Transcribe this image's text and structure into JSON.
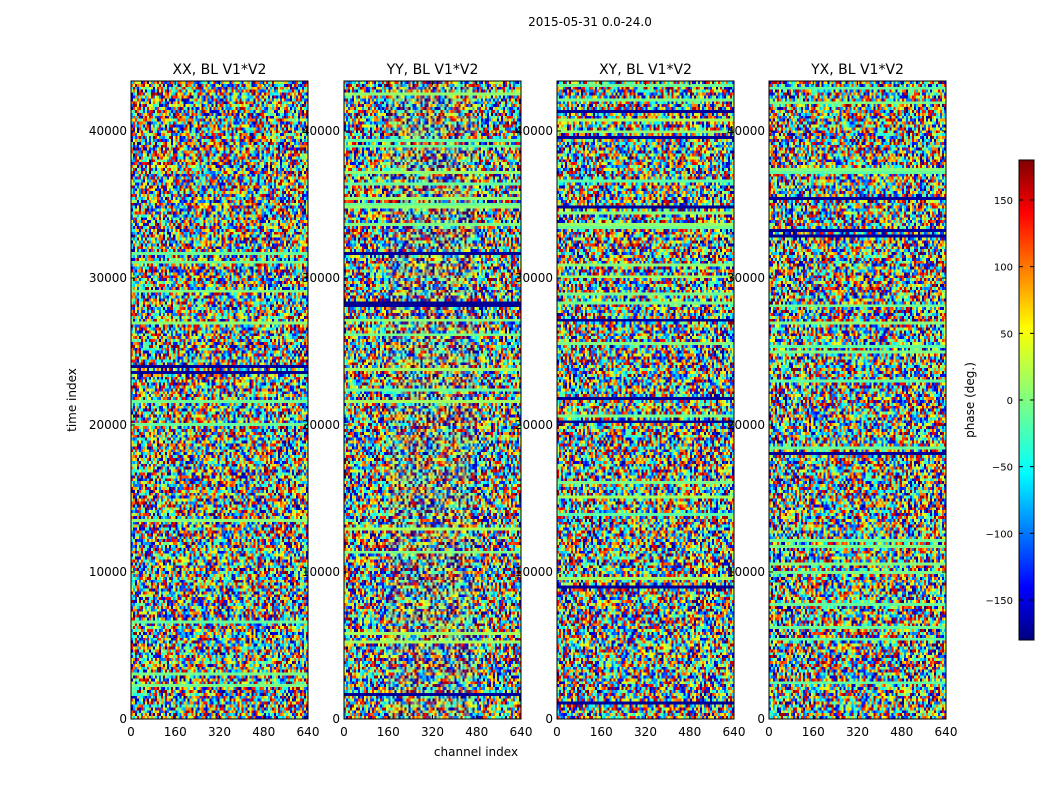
{
  "figure": {
    "suptitle": "2015-05-31 0.0-24.0",
    "xlabel": "channel index",
    "ylabel": "time index",
    "colorbar_label": "phase (deg.)"
  },
  "chart_data": {
    "type": "heatmap",
    "panels": [
      {
        "title": "XX, BL V1*V2"
      },
      {
        "title": "YY, BL V1*V2"
      },
      {
        "title": "XY, BL V1*V2"
      },
      {
        "title": "YX, BL V1*V2"
      }
    ],
    "x_range": [
      0,
      640
    ],
    "y_range": [
      0,
      43400
    ],
    "x_ticks": [
      0,
      160,
      320,
      480,
      640
    ],
    "y_ticks": [
      0,
      10000,
      20000,
      30000,
      40000
    ],
    "colorbar": {
      "range": [
        -180,
        180
      ],
      "ticks": [
        -150,
        -100,
        -50,
        0,
        50,
        100,
        150
      ],
      "colormap": "jet"
    },
    "colors": {
      "jet": [
        "#000080",
        "#0000ff",
        "#00ffff",
        "#80ff80",
        "#ffff00",
        "#ff0000",
        "#800000"
      ]
    },
    "grid": false
  }
}
